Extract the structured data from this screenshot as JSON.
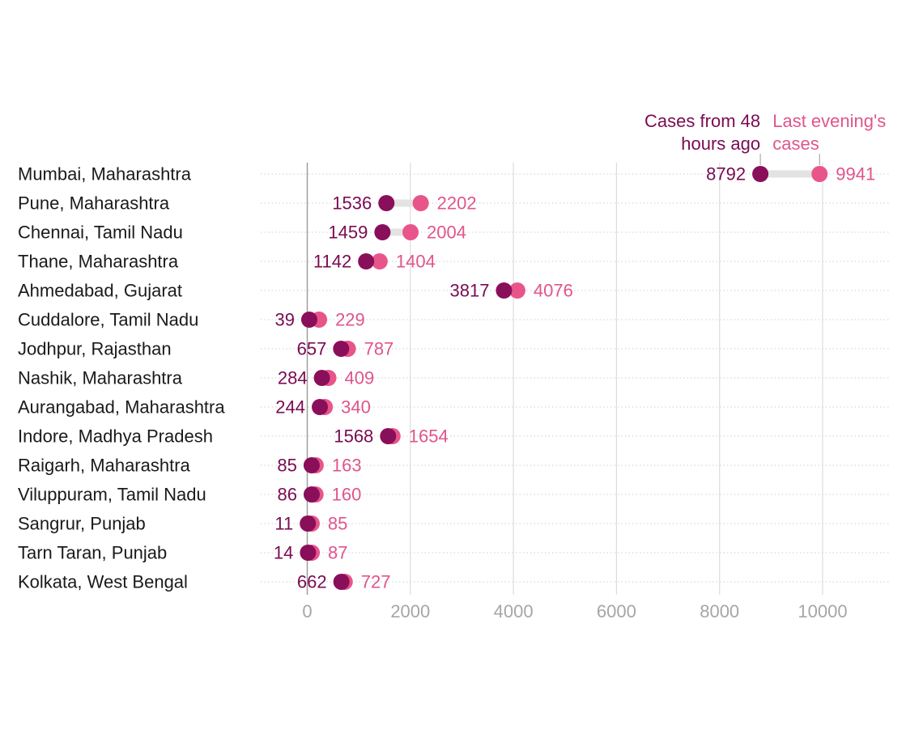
{
  "colors": {
    "old": "#8a0f5a",
    "new": "#e8558b",
    "connector": "#e3e3e3",
    "grid": "#dcdcdc",
    "axis": "#9a9a9a",
    "tick_text": "#a6a6a6",
    "label_text": "#1a1a1a"
  },
  "chart_data": {
    "type": "dumbbell",
    "legend": {
      "old": [
        "Cases from 48",
        "hours ago"
      ],
      "new": [
        "Last evening's",
        "cases"
      ],
      "placement": "top-right, attached to first row"
    },
    "xlim": [
      0,
      11000
    ],
    "xticks": [
      0,
      2000,
      4000,
      6000,
      8000,
      10000
    ],
    "grid": "vertical major lines, dotted horizontal row guides",
    "series": [
      {
        "name": "Cases from 48 hours ago",
        "key": "old"
      },
      {
        "name": "Last evening's cases",
        "key": "new"
      }
    ],
    "rows": [
      {
        "label": "Mumbai, Maharashtra",
        "old": 8792,
        "new": 9941
      },
      {
        "label": "Pune, Maharashtra",
        "old": 1536,
        "new": 2202
      },
      {
        "label": "Chennai, Tamil Nadu",
        "old": 1459,
        "new": 2004
      },
      {
        "label": "Thane, Maharashtra",
        "old": 1142,
        "new": 1404
      },
      {
        "label": "Ahmedabad, Gujarat",
        "old": 3817,
        "new": 4076
      },
      {
        "label": "Cuddalore, Tamil Nadu",
        "old": 39,
        "new": 229
      },
      {
        "label": "Jodhpur, Rajasthan",
        "old": 657,
        "new": 787
      },
      {
        "label": "Nashik, Maharashtra",
        "old": 284,
        "new": 409
      },
      {
        "label": "Aurangabad, Maharashtra",
        "old": 244,
        "new": 340
      },
      {
        "label": "Indore, Madhya Pradesh",
        "old": 1568,
        "new": 1654
      },
      {
        "label": "Raigarh, Maharashtra",
        "old": 85,
        "new": 163
      },
      {
        "label": "Viluppuram, Tamil Nadu",
        "old": 86,
        "new": 160
      },
      {
        "label": "Sangrur, Punjab",
        "old": 11,
        "new": 85
      },
      {
        "label": "Tarn Taran, Punjab",
        "old": 14,
        "new": 87
      },
      {
        "label": "Kolkata, West Bengal",
        "old": 662,
        "new": 727
      }
    ]
  }
}
